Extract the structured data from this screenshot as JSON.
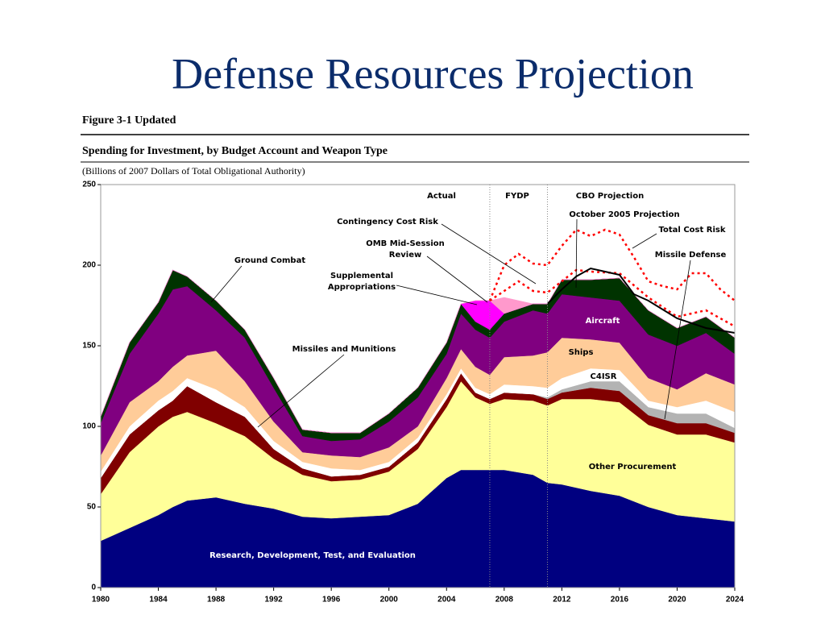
{
  "title": "Defense Resources Projection",
  "chart_data": {
    "type": "stacked_area",
    "figure_label": "Figure 3-1 Updated",
    "title": "Spending for Investment, by Budget Account and Weapon Type",
    "subtitle": "(Billions of 2007 Dollars of Total Obligational Authority)",
    "x": [
      1980,
      1982,
      1984,
      1985,
      1986,
      1988,
      1990,
      1992,
      1994,
      1996,
      1998,
      2000,
      2002,
      2004,
      2005,
      2006,
      2007,
      2008,
      2010,
      2011,
      2012,
      2014,
      2016,
      2018,
      2020,
      2022,
      2024
    ],
    "xlim": [
      1980,
      2024
    ],
    "xticks": [
      1980,
      1984,
      1988,
      1992,
      1996,
      2000,
      2004,
      2008,
      2012,
      2016,
      2020,
      2024
    ],
    "ylim": [
      0,
      250
    ],
    "yticks": [
      0,
      50,
      100,
      150,
      200,
      250
    ],
    "dividers": [
      2007,
      2011
    ],
    "periods": [
      "Actual",
      "FYDP",
      "CBO Projection"
    ],
    "series": [
      {
        "name": "Research, Development, Test, and Evaluation",
        "color": "#000080",
        "values": [
          29,
          37,
          45,
          50,
          54,
          56,
          52,
          49,
          44,
          43,
          44,
          45,
          52,
          68,
          73,
          73,
          73,
          73,
          70,
          65,
          64,
          60,
          57,
          50,
          45,
          43,
          41
        ]
      },
      {
        "name": "Other Procurement",
        "color": "#ffff99",
        "values": [
          29,
          47,
          55,
          56,
          55,
          46,
          42,
          31,
          26,
          23,
          23,
          27,
          34,
          44,
          55,
          45,
          41,
          44,
          46,
          48,
          53,
          57,
          58,
          51,
          50,
          52,
          49
        ]
      },
      {
        "name": "Missiles and Munitions",
        "color": "#800000",
        "values": [
          10,
          11,
          10,
          10,
          16,
          13,
          12,
          6,
          4,
          3,
          3,
          3,
          4,
          5,
          5,
          3,
          3,
          4,
          4,
          4,
          4,
          7,
          7,
          6,
          7,
          7,
          6
        ]
      },
      {
        "name": "Missile Defense",
        "color": "#b3b3b3",
        "values": [
          0,
          0,
          0,
          0,
          0,
          0,
          0,
          0,
          0,
          0,
          0,
          0,
          0,
          0,
          0,
          0,
          0,
          0,
          0,
          1,
          2,
          4,
          6,
          5,
          6,
          6,
          3
        ]
      },
      {
        "name": "C4ISR",
        "color": "#ffffff",
        "values": [
          4,
          5,
          6,
          6,
          5,
          8,
          6,
          5,
          4,
          5,
          3,
          3,
          3,
          3,
          3,
          3,
          3,
          5,
          5,
          6,
          7,
          8,
          7,
          4,
          4,
          8,
          10
        ]
      },
      {
        "name": "Ships",
        "color": "#ffcc99",
        "values": [
          10,
          15,
          12,
          15,
          14,
          24,
          16,
          12,
          6,
          8,
          8,
          9,
          7,
          10,
          12,
          13,
          12,
          17,
          19,
          22,
          25,
          18,
          17,
          14,
          11,
          17,
          17
        ]
      },
      {
        "name": "Aircraft",
        "color": "#800080",
        "values": [
          20,
          30,
          42,
          48,
          43,
          25,
          27,
          21,
          10,
          9,
          11,
          16,
          18,
          15,
          22,
          23,
          23,
          22,
          28,
          24,
          27,
          26,
          26,
          27,
          27,
          25,
          19
        ]
      },
      {
        "name": "Ground Combat",
        "color": "#003300",
        "values": [
          4,
          7,
          7,
          12,
          6,
          6,
          5,
          6,
          4,
          5,
          4,
          5,
          6,
          7,
          6,
          5,
          5,
          5,
          4,
          6,
          9,
          11,
          14,
          15,
          11,
          10,
          10
        ]
      },
      {
        "name": "Supplemental Appropriations",
        "color": "#ff00ff",
        "values": [
          0,
          0,
          0,
          0,
          0,
          0,
          0,
          0,
          0,
          0,
          0,
          0,
          0,
          0,
          0,
          13,
          18,
          0,
          0,
          0,
          0,
          0,
          0,
          0,
          0,
          0,
          0
        ]
      },
      {
        "name": "OMB Mid-Session Review",
        "color": "#ff99cc",
        "values": [
          0,
          0,
          0,
          0,
          0,
          0,
          0,
          0,
          0,
          0,
          0,
          0,
          0,
          0,
          0,
          0,
          0,
          10,
          0,
          0,
          0,
          0,
          0,
          0,
          0,
          0,
          0
        ]
      }
    ],
    "lines": [
      {
        "name": "Contingency Cost Risk",
        "color": "#ff0000",
        "x": [
          2007,
          2009,
          2010,
          2011,
          2012,
          2013,
          2014,
          2016,
          2018,
          2020,
          2022,
          2024
        ],
        "values": [
          178,
          190,
          184,
          183,
          190,
          197,
          196,
          195,
          180,
          168,
          172,
          162
        ]
      },
      {
        "name": "Total Cost Risk",
        "color": "#ff0000",
        "x": [
          2007,
          2008,
          2009,
          2010,
          2011,
          2012,
          2013,
          2014,
          2015,
          2016,
          2017,
          2018,
          2019,
          2020,
          2021,
          2022,
          2023,
          2024
        ],
        "values": [
          178,
          200,
          207,
          201,
          200,
          212,
          222,
          218,
          222,
          219,
          205,
          190,
          187,
          185,
          195,
          195,
          185,
          178
        ]
      },
      {
        "name": "October 2005 Projection",
        "color": "#000000",
        "x": [
          2011,
          2012,
          2013,
          2014,
          2015,
          2016,
          2017,
          2018,
          2020,
          2022,
          2024
        ],
        "values": [
          176,
          185,
          193,
          198,
          196,
          194,
          182,
          178,
          167,
          161,
          158
        ]
      }
    ]
  }
}
